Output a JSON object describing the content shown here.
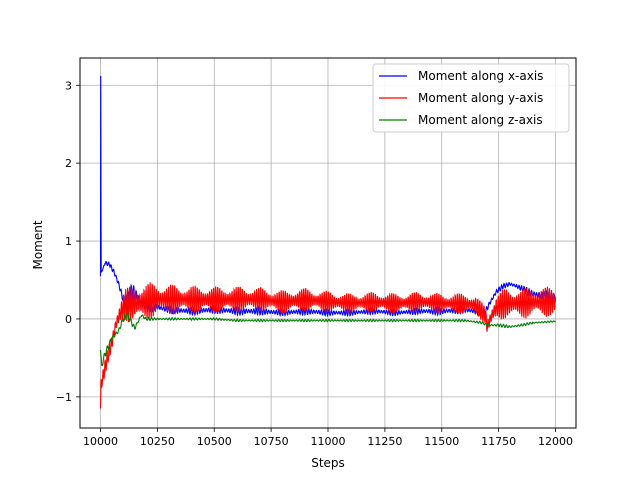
{
  "chart_data": {
    "type": "line",
    "title": "",
    "xlabel": "Steps",
    "ylabel": "Moment",
    "xlim": [
      9910,
      12090
    ],
    "ylim": [
      -1.4,
      3.35
    ],
    "xticks": [
      10000,
      10250,
      10500,
      10750,
      11000,
      11250,
      11500,
      11750,
      12000
    ],
    "xtick_labels": [
      "10000",
      "10250",
      "10500",
      "10750",
      "11000",
      "11250",
      "11500",
      "11750",
      "12000"
    ],
    "yticks": [
      -1,
      0,
      1,
      2,
      3
    ],
    "ytick_labels": [
      "−1",
      "0",
      "1",
      "2",
      "3"
    ],
    "grid": true,
    "legend": "top-right",
    "series": [
      {
        "name": "Moment along x-axis",
        "color": "#0000ff",
        "x": [
          10000,
          10001,
          10003,
          10008,
          10020,
          10040,
          10060,
          10080,
          10100,
          10120,
          10140,
          10160,
          10180,
          10200,
          10250,
          10300,
          10400,
          10500,
          10600,
          10700,
          10800,
          10900,
          11000,
          11100,
          11200,
          11300,
          11400,
          11500,
          11600,
          11650,
          11690,
          11710,
          11740,
          11770,
          11800,
          11830,
          11860,
          11900,
          11950,
          12000
        ],
        "y": [
          0.55,
          3.12,
          0.6,
          0.62,
          0.72,
          0.7,
          0.6,
          0.45,
          0.25,
          0.2,
          0.35,
          0.3,
          0.2,
          0.15,
          0.15,
          0.12,
          0.1,
          0.12,
          0.1,
          0.1,
          0.08,
          0.1,
          0.08,
          0.08,
          0.1,
          0.08,
          0.1,
          0.1,
          0.12,
          0.1,
          0.08,
          0.2,
          0.35,
          0.42,
          0.45,
          0.42,
          0.38,
          0.32,
          0.3,
          0.28
        ],
        "osc": [
          0,
          0,
          0,
          0,
          0.02,
          0.03,
          0.05,
          0.06,
          0.06,
          0.12,
          0.15,
          0.1,
          0.07,
          0.05,
          0.05,
          0.05,
          0.05,
          0.05,
          0.05,
          0.05,
          0.04,
          0.05,
          0.04,
          0.04,
          0.04,
          0.04,
          0.04,
          0.05,
          0.05,
          0.05,
          0.05,
          0.05,
          0.04,
          0.03,
          0.03,
          0.04,
          0.04,
          0.06,
          0.06,
          0.06
        ]
      },
      {
        "name": "Moment along y-axis",
        "color": "#ff0000",
        "x": [
          10000,
          10002,
          10010,
          10030,
          10050,
          10070,
          10090,
          10110,
          10150,
          10200,
          10250,
          10300,
          10400,
          10500,
          10600,
          10700,
          10800,
          10900,
          11000,
          11100,
          11200,
          11300,
          11400,
          11500,
          11600,
          11650,
          11690,
          11700,
          11720,
          11740,
          11780,
          11820,
          11860,
          11900,
          11950,
          12000
        ],
        "y": [
          -1.15,
          -0.85,
          -0.75,
          -0.5,
          -0.3,
          -0.05,
          0.1,
          0.18,
          0.2,
          0.22,
          0.25,
          0.25,
          0.25,
          0.25,
          0.25,
          0.25,
          0.22,
          0.25,
          0.22,
          0.2,
          0.22,
          0.2,
          0.22,
          0.2,
          0.2,
          0.18,
          0.05,
          -0.1,
          0.05,
          0.15,
          0.2,
          0.2,
          0.2,
          0.22,
          0.22,
          0.22
        ],
        "osc": [
          0.05,
          0.1,
          0.1,
          0.1,
          0.12,
          0.15,
          0.18,
          0.22,
          0.25,
          0.25,
          0.22,
          0.2,
          0.18,
          0.17,
          0.17,
          0.16,
          0.15,
          0.15,
          0.14,
          0.13,
          0.13,
          0.13,
          0.13,
          0.13,
          0.13,
          0.12,
          0.12,
          0.12,
          0.15,
          0.18,
          0.2,
          0.2,
          0.2,
          0.2,
          0.2,
          0.18
        ]
      },
      {
        "name": "Moment along z-axis",
        "color": "#008000",
        "x": [
          10000,
          10005,
          10020,
          10050,
          10080,
          10100,
          10120,
          10150,
          10180,
          10200,
          10300,
          10400,
          10500,
          10600,
          10800,
          11000,
          11200,
          11400,
          11600,
          11680,
          11700,
          11750,
          11800,
          11850,
          11900,
          11950,
          12000
        ],
        "y": [
          -0.4,
          -0.6,
          -0.45,
          -0.25,
          -0.15,
          0.0,
          0.05,
          -0.12,
          0.05,
          0.0,
          0.0,
          0.0,
          0.0,
          -0.02,
          -0.02,
          -0.02,
          -0.02,
          -0.02,
          -0.02,
          -0.05,
          -0.08,
          -0.08,
          -0.1,
          -0.08,
          -0.05,
          -0.04,
          -0.03
        ],
        "osc": [
          0.02,
          0.05,
          0.04,
          0.04,
          0.05,
          0.05,
          0.04,
          0.04,
          0.03,
          0.02,
          0.015,
          0.015,
          0.015,
          0.015,
          0.015,
          0.015,
          0.015,
          0.015,
          0.015,
          0.015,
          0.02,
          0.02,
          0.02,
          0.015,
          0.015,
          0.01,
          0.01
        ]
      }
    ]
  }
}
